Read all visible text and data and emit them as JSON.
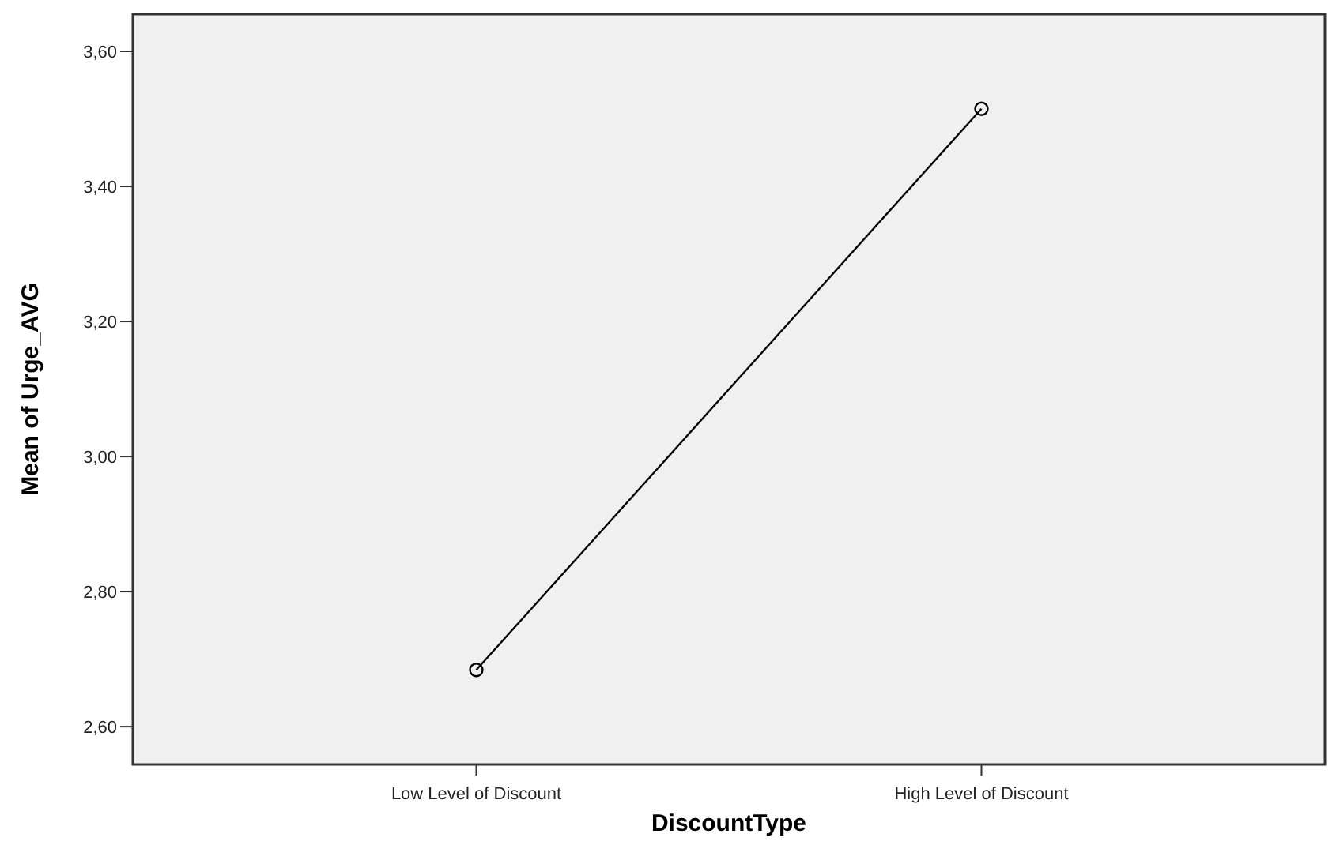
{
  "chart_data": {
    "type": "line",
    "xlabel": "DiscountType",
    "ylabel": "Mean of Urge_AVG",
    "categories": [
      "Low Level of Discount",
      "High Level of Discount"
    ],
    "series": [
      {
        "color": "#000000",
        "values": [
          2.684,
          3.515
        ]
      }
    ],
    "marker": "circle",
    "line_style": "solid",
    "ylim": [
      2.544,
      3.655
    ],
    "yticks": [
      {
        "value": 2.6,
        "label": "2,60"
      },
      {
        "value": 2.8,
        "label": "2,80"
      },
      {
        "value": 3.0,
        "label": "3,00"
      },
      {
        "value": 3.2,
        "label": "3,20"
      },
      {
        "value": 3.4,
        "label": "3,40"
      },
      {
        "value": 3.6,
        "label": "3,60"
      }
    ]
  }
}
